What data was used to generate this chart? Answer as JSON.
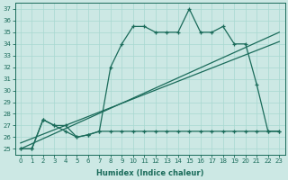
{
  "xlabel": "Humidex (Indice chaleur)",
  "bg_color": "#cce8e4",
  "line_color": "#1a6b5a",
  "xlim": [
    -0.5,
    23.5
  ],
  "ylim": [
    24.5,
    37.5
  ],
  "xticks": [
    0,
    1,
    2,
    3,
    4,
    5,
    6,
    7,
    8,
    9,
    10,
    11,
    12,
    13,
    14,
    15,
    16,
    17,
    18,
    19,
    20,
    21,
    22,
    23
  ],
  "yticks": [
    25,
    26,
    27,
    28,
    29,
    30,
    31,
    32,
    33,
    34,
    35,
    36,
    37
  ],
  "main_curve_x": [
    0,
    1,
    2,
    3,
    4,
    5,
    6,
    7,
    8,
    9,
    10,
    11,
    12,
    13,
    14,
    15,
    16,
    17,
    18,
    19,
    20,
    21,
    22,
    23
  ],
  "main_curve_y": [
    25,
    25,
    27.5,
    27,
    27,
    26,
    26.2,
    26.5,
    32,
    34,
    35.5,
    35.5,
    35,
    35,
    35,
    37,
    35,
    35,
    35.5,
    34,
    34,
    30.5,
    26.5,
    26.5
  ],
  "low_curve_x": [
    0,
    1,
    2,
    3,
    4,
    5,
    6,
    7,
    8,
    9,
    10,
    11,
    12,
    13,
    14,
    15,
    16,
    17,
    18,
    19,
    20,
    21,
    22,
    23
  ],
  "low_curve_y": [
    25,
    25,
    27.5,
    27,
    26.5,
    26,
    26.2,
    26.5,
    26.5,
    26.5,
    26.5,
    26.5,
    26.5,
    26.5,
    26.5,
    26.5,
    26.5,
    26.5,
    26.5,
    26.5,
    26.5,
    26.5,
    26.5,
    26.5
  ],
  "trend1_x": [
    0,
    23
  ],
  "trend1_y": [
    25.5,
    34.2
  ],
  "trend2_x": [
    0,
    23
  ],
  "trend2_y": [
    25.0,
    35.0
  ],
  "grid_color": "#a8d8d0",
  "xlabel_fontsize": 6,
  "tick_fontsize": 5
}
